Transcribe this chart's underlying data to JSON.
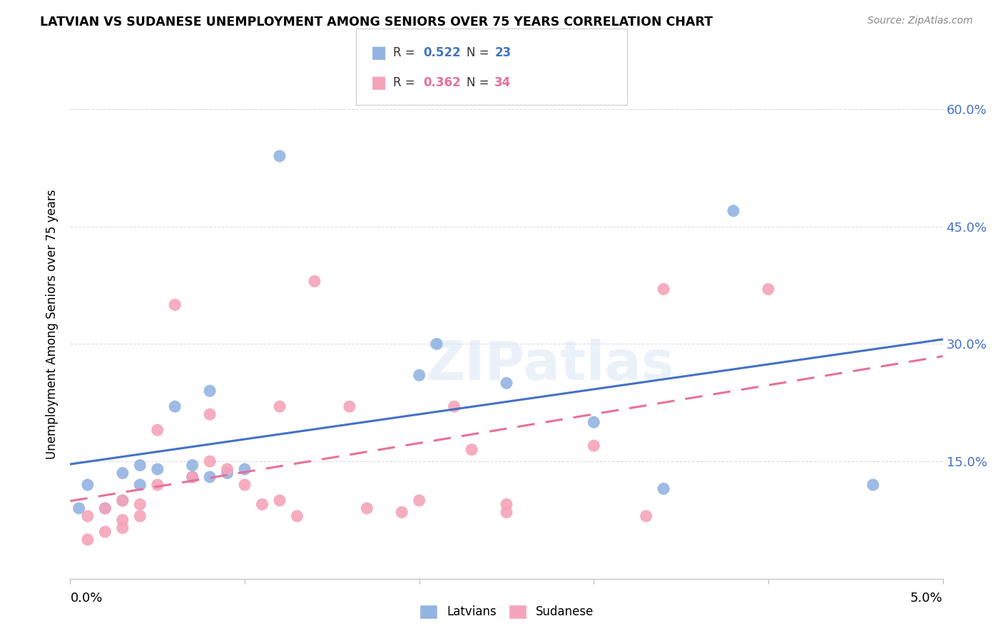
{
  "title": "LATVIAN VS SUDANESE UNEMPLOYMENT AMONG SENIORS OVER 75 YEARS CORRELATION CHART",
  "source": "Source: ZipAtlas.com",
  "ylabel": "Unemployment Among Seniors over 75 years",
  "xlim": [
    0.0,
    0.05
  ],
  "ylim": [
    0.0,
    0.65
  ],
  "yticks": [
    0.0,
    0.15,
    0.3,
    0.45,
    0.6
  ],
  "ytick_labels": [
    "",
    "15.0%",
    "30.0%",
    "45.0%",
    "60.0%"
  ],
  "latvian_R": "0.522",
  "latvian_N": "23",
  "sudanese_R": "0.362",
  "sudanese_N": "34",
  "latvian_color": "#92B4E3",
  "sudanese_color": "#F4A4B8",
  "latvian_line_color": "#4472C4",
  "sudanese_line_color": "#E8709A",
  "background_color": "#FFFFFF",
  "grid_color": "#DDDDDD",
  "latvian_points_x": [
    0.0005,
    0.001,
    0.002,
    0.003,
    0.003,
    0.004,
    0.004,
    0.005,
    0.006,
    0.007,
    0.007,
    0.008,
    0.008,
    0.009,
    0.01,
    0.012,
    0.02,
    0.021,
    0.025,
    0.03,
    0.034,
    0.038,
    0.046
  ],
  "latvian_points_y": [
    0.09,
    0.12,
    0.09,
    0.1,
    0.135,
    0.12,
    0.145,
    0.14,
    0.22,
    0.13,
    0.145,
    0.24,
    0.13,
    0.135,
    0.14,
    0.54,
    0.26,
    0.3,
    0.25,
    0.2,
    0.115,
    0.47,
    0.12
  ],
  "sudanese_points_x": [
    0.001,
    0.001,
    0.002,
    0.002,
    0.003,
    0.003,
    0.003,
    0.004,
    0.004,
    0.005,
    0.005,
    0.006,
    0.007,
    0.008,
    0.008,
    0.009,
    0.01,
    0.011,
    0.012,
    0.012,
    0.013,
    0.014,
    0.016,
    0.017,
    0.019,
    0.02,
    0.022,
    0.023,
    0.025,
    0.025,
    0.03,
    0.033,
    0.034,
    0.04
  ],
  "sudanese_points_y": [
    0.05,
    0.08,
    0.06,
    0.09,
    0.075,
    0.1,
    0.065,
    0.08,
    0.095,
    0.19,
    0.12,
    0.35,
    0.13,
    0.15,
    0.21,
    0.14,
    0.12,
    0.095,
    0.22,
    0.1,
    0.08,
    0.38,
    0.22,
    0.09,
    0.085,
    0.1,
    0.22,
    0.165,
    0.085,
    0.095,
    0.17,
    0.08,
    0.37,
    0.37
  ]
}
